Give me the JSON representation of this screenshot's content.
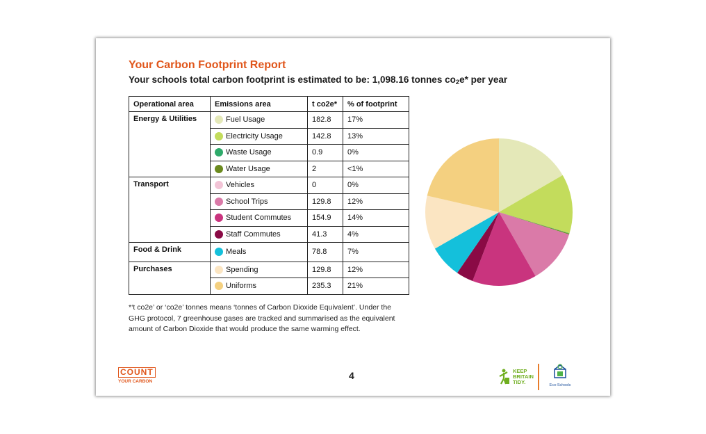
{
  "title": "Your Carbon Footprint Report",
  "subtitle": {
    "prefix": "Your schools total carbon footprint is estimated to be: 1,098.16 tonnes co",
    "sub": "2",
    "suffix": "e* per year"
  },
  "table": {
    "headers": [
      "Operational area",
      "Emissions area",
      "t co2e*",
      "% of footprint"
    ],
    "groups": [
      {
        "area": "Energy & Utilities",
        "rows": [
          {
            "name": "Fuel Usage",
            "value": "182.8",
            "pct": "17%",
            "color": "#e4e8b8"
          },
          {
            "name": "Electricity Usage",
            "value": "142.8",
            "pct": "13%",
            "color": "#c3dc5c"
          },
          {
            "name": "Waste Usage",
            "value": "0.9",
            "pct": "0%",
            "color": "#2eaa6a"
          },
          {
            "name": "Water Usage",
            "value": "2",
            "pct": "<1%",
            "color": "#6b8a1e"
          }
        ]
      },
      {
        "area": "Transport",
        "rows": [
          {
            "name": "Vehicles",
            "value": "0",
            "pct": "0%",
            "color": "#f2c4d6"
          },
          {
            "name": "School Trips",
            "value": "129.8",
            "pct": "12%",
            "color": "#da7aa8"
          },
          {
            "name": "Student Commutes",
            "value": "154.9",
            "pct": "14%",
            "color": "#c9347e"
          },
          {
            "name": "Staff Commutes",
            "value": "41.3",
            "pct": "4%",
            "color": "#8a0a45"
          }
        ]
      },
      {
        "area": "Food & Drink",
        "rows": [
          {
            "name": "Meals",
            "value": "78.8",
            "pct": "7%",
            "color": "#14c0db"
          }
        ]
      },
      {
        "area": "Purchases",
        "rows": [
          {
            "name": "Spending",
            "value": "129.8",
            "pct": "12%",
            "color": "#fbe5c2"
          },
          {
            "name": "Uniforms",
            "value": "235.3",
            "pct": "21%",
            "color": "#f4d080"
          }
        ]
      }
    ]
  },
  "note": "*‘t co2e’ or ‘co2e’ tonnes means ‘tonnes of Carbon Dioxide Equivalent’. Under the GHG protocol, 7 greenhouse gases are tracked and summarised as the equivalent amount of Carbon Dioxide that would produce the same warming effect.",
  "page_number": "4",
  "logos": {
    "count": {
      "line1": "COUNT",
      "line2": "YOUR CARBON"
    },
    "kbt": {
      "line1": "KEEP",
      "line2": "BRITAIN",
      "line3": "TIDY."
    },
    "eco": "Eco-Schools"
  },
  "chart_data": {
    "type": "pie",
    "start": "top",
    "direction": "clockwise",
    "slices": [
      {
        "label": "Fuel Usage",
        "value": 182.8,
        "color": "#e4e8b8"
      },
      {
        "label": "Electricity Usage",
        "value": 142.8,
        "color": "#c3dc5c"
      },
      {
        "label": "Waste Usage",
        "value": 0.9,
        "color": "#2eaa6a"
      },
      {
        "label": "Water Usage",
        "value": 2,
        "color": "#6b8a1e"
      },
      {
        "label": "Vehicles",
        "value": 0,
        "color": "#f2c4d6"
      },
      {
        "label": "School Trips",
        "value": 129.8,
        "color": "#da7aa8"
      },
      {
        "label": "Student Commutes",
        "value": 154.9,
        "color": "#c9347e"
      },
      {
        "label": "Staff Commutes",
        "value": 41.3,
        "color": "#8a0a45"
      },
      {
        "label": "Meals",
        "value": 78.8,
        "color": "#14c0db"
      },
      {
        "label": "Spending",
        "value": 129.8,
        "color": "#fbe5c2"
      },
      {
        "label": "Uniforms",
        "value": 235.3,
        "color": "#f4d080"
      }
    ]
  }
}
